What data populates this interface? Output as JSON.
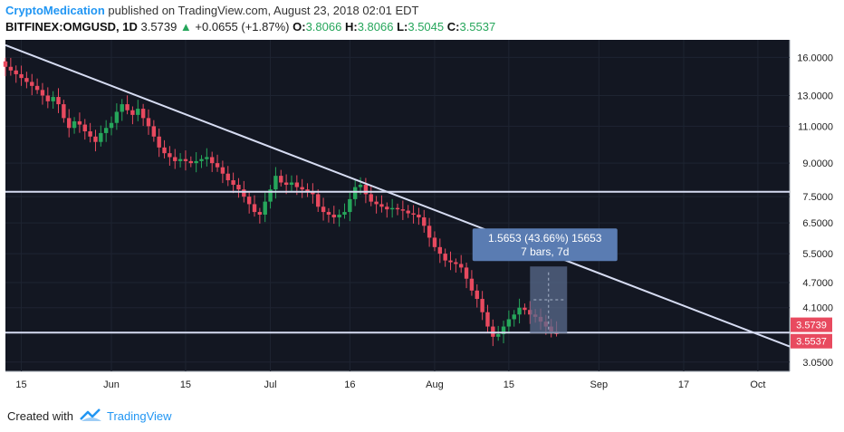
{
  "header": {
    "author": "CryptoMedication",
    "published": "published on TradingView.com, August 23, 2018 02:01 EDT",
    "symbol": "BITFINEX:OMGUSD, 1D",
    "last": "3.5739",
    "change_arrow": "▲",
    "change": "+0.0655 (+1.87%)",
    "o_label": "O:",
    "o_value": "3.8066",
    "h_label": "H:",
    "h_value": "3.8066",
    "l_label": "L:",
    "l_value": "3.5045",
    "c_label": "C:",
    "c_value": "3.5537"
  },
  "footer": {
    "created": "Created with",
    "brand": "TradingView"
  },
  "colors": {
    "background": "#131722",
    "up": "#26a65b",
    "down": "#e84a5f",
    "trendline": "#d6dcf2",
    "axis_text": "#222222",
    "measure_box": "#5a6b8c",
    "price_tag": "#e84a5f"
  },
  "chart_data": {
    "type": "candlestick",
    "y_scale": "log",
    "ylim": [
      2.9,
      17.6
    ],
    "y_ticks": [
      "16.0000",
      "13.0000",
      "11.0000",
      "9.0000",
      "7.5000",
      "6.5000",
      "5.5000",
      "4.7000",
      "4.1000",
      "3.0500"
    ],
    "x_ticks": [
      {
        "label": "15",
        "date": "2018-05-15"
      },
      {
        "label": "Jun",
        "date": "2018-06-01"
      },
      {
        "label": "15",
        "date": "2018-06-15"
      },
      {
        "label": "Jul",
        "date": "2018-07-01"
      },
      {
        "label": "16",
        "date": "2018-07-16"
      },
      {
        "label": "Aug",
        "date": "2018-08-01"
      },
      {
        "label": "15",
        "date": "2018-08-15"
      },
      {
        "label": "Sep",
        "date": "2018-09-01"
      },
      {
        "label": "17",
        "date": "2018-09-17"
      },
      {
        "label": "Oct",
        "date": "2018-10-01"
      }
    ],
    "x_range": [
      "2018-05-12",
      "2018-10-07"
    ],
    "start_date": "2018-05-12",
    "closes": [
      15.2,
      14.9,
      14.6,
      14.3,
      14.0,
      13.7,
      13.4,
      13.0,
      12.6,
      12.9,
      12.4,
      11.5,
      10.9,
      11.3,
      11.1,
      10.7,
      10.4,
      10.1,
      10.6,
      10.9,
      11.2,
      11.9,
      12.4,
      12.0,
      11.7,
      12.1,
      11.5,
      11.0,
      10.4,
      9.8,
      9.5,
      9.3,
      9.1,
      9.2,
      9.1,
      9.0,
      9.1,
      9.2,
      9.3,
      9.0,
      8.8,
      8.5,
      8.2,
      8.0,
      7.8,
      7.5,
      7.2,
      6.9,
      6.8,
      7.3,
      7.8,
      8.4,
      8.1,
      8.0,
      8.1,
      7.9,
      7.8,
      7.7,
      7.6,
      7.1,
      6.9,
      6.8,
      6.7,
      6.8,
      6.9,
      7.4,
      7.9,
      8.0,
      7.6,
      7.3,
      7.2,
      7.1,
      7.0,
      7.05,
      7.0,
      6.95,
      6.85,
      6.8,
      6.7,
      6.4,
      6.0,
      5.7,
      5.5,
      5.3,
      5.25,
      5.2,
      5.1,
      4.8,
      4.5,
      4.3,
      4.0,
      3.7,
      3.5,
      3.55,
      3.7,
      3.85,
      3.95,
      4.1,
      4.05,
      3.95,
      3.9,
      3.8,
      3.7,
      3.6,
      3.5537
    ],
    "last_high": 3.8066,
    "last_low": 3.5045,
    "hlines": [
      {
        "price": 7.7,
        "start": "2018-05-12",
        "end": "2018-10-07"
      },
      {
        "price": 3.58,
        "start": "2018-05-12",
        "end": "2018-10-07"
      }
    ],
    "trendline": {
      "p1": {
        "date": "2018-05-12",
        "price": 17.1
      },
      "p2": {
        "date": "2018-10-07",
        "price": 3.32
      }
    },
    "measure": {
      "from_date": "2018-08-19",
      "to_date": "2018-08-26",
      "from_price": 3.57,
      "to_price": 5.13,
      "line1": "1.5653 (43.66%) 15653",
      "line2": "7 bars, 7d"
    },
    "price_tags": [
      "3.5739",
      "3.5537"
    ]
  }
}
